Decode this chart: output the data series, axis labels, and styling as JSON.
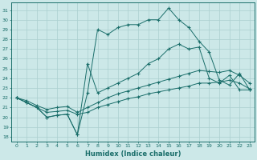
{
  "xlabel": "Humidex (Indice chaleur)",
  "bg_color": "#cce8e8",
  "line_color": "#1a6e6a",
  "grid_color": "#aacfcf",
  "xlim": [
    -0.5,
    23.5
  ],
  "ylim": [
    17.5,
    31.8
  ],
  "xticks": [
    0,
    1,
    2,
    3,
    4,
    5,
    6,
    7,
    8,
    9,
    10,
    11,
    12,
    13,
    14,
    15,
    16,
    17,
    18,
    19,
    20,
    21,
    22,
    23
  ],
  "yticks": [
    18,
    19,
    20,
    21,
    22,
    23,
    24,
    25,
    26,
    27,
    28,
    29,
    30,
    31
  ],
  "line1_y": [
    22.0,
    21.5,
    21.0,
    20.0,
    20.2,
    20.3,
    18.2,
    22.5,
    29.0,
    28.5,
    29.2,
    29.5,
    29.5,
    30.0,
    30.0,
    31.2,
    30.0,
    29.2,
    27.8,
    26.7,
    23.8,
    23.3,
    24.5,
    22.8
  ],
  "line2_y": [
    22.0,
    21.5,
    21.0,
    20.0,
    20.2,
    20.3,
    18.2,
    25.5,
    22.5,
    23.0,
    23.5,
    24.0,
    24.5,
    25.5,
    26.0,
    27.0,
    27.5,
    27.0,
    27.2,
    24.0,
    23.5,
    24.3,
    22.8,
    22.8
  ],
  "line3_y": [
    22.0,
    21.7,
    21.2,
    20.8,
    21.0,
    21.1,
    20.5,
    21.0,
    21.5,
    22.0,
    22.4,
    22.7,
    23.0,
    23.3,
    23.6,
    23.9,
    24.2,
    24.5,
    24.8,
    24.7,
    24.6,
    24.8,
    24.3,
    23.5
  ],
  "line4_y": [
    22.0,
    21.5,
    21.0,
    20.5,
    20.6,
    20.7,
    20.3,
    20.5,
    21.0,
    21.3,
    21.6,
    21.9,
    22.1,
    22.4,
    22.6,
    22.8,
    23.0,
    23.2,
    23.5,
    23.5,
    23.6,
    23.8,
    23.5,
    22.9
  ]
}
